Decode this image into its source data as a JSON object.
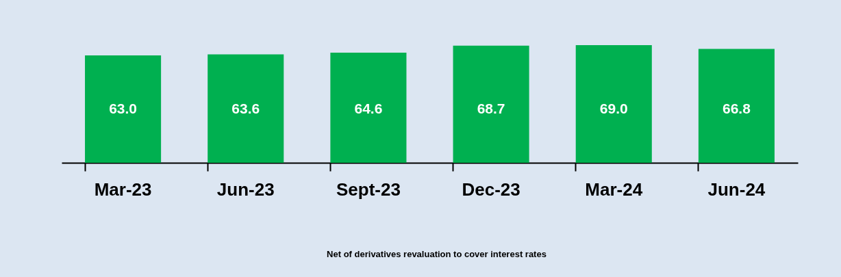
{
  "chart_data": {
    "type": "bar",
    "categories": [
      "Mar-23",
      "Jun-23",
      "Sept-23",
      "Dec-23",
      "Mar-24",
      "Jun-24"
    ],
    "values": [
      63.0,
      63.6,
      64.6,
      68.7,
      69.0,
      66.8
    ],
    "value_labels": [
      "63.0",
      "63.6",
      "64.6",
      "68.7",
      "69.0",
      "66.8"
    ],
    "color": "#00b050",
    "annotations": [
      "Net of derivatives revaluation to cover interest rates"
    ]
  }
}
